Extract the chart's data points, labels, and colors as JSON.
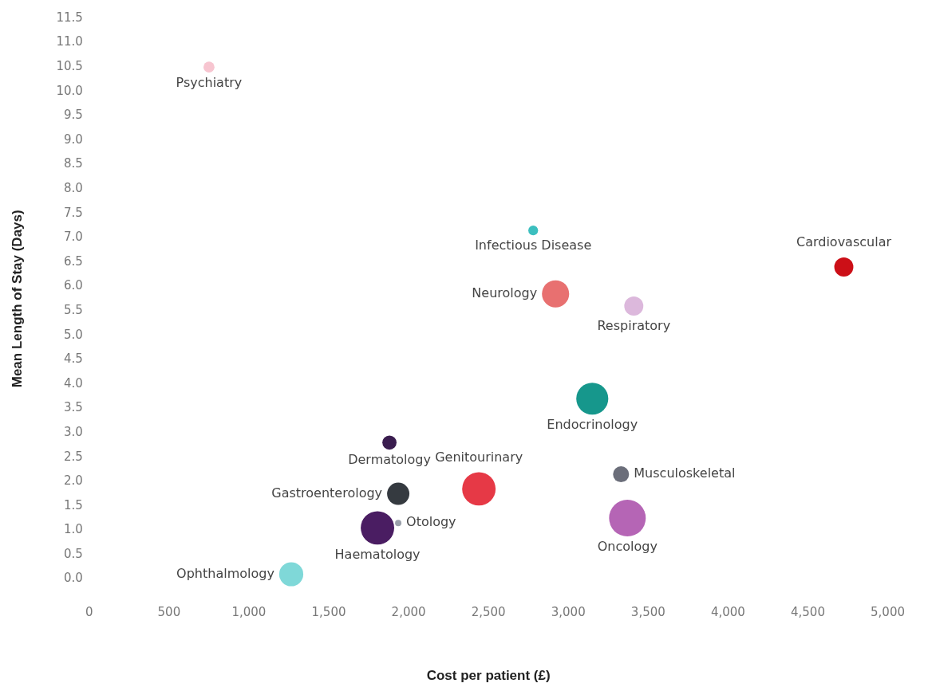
{
  "chart_data": {
    "type": "bubble",
    "xlabel": "Cost per patient (£)",
    "ylabel": "Mean Length of Stay (Days)",
    "legend": false,
    "grid": false,
    "xlim": [
      0,
      5000
    ],
    "xticks": [
      0,
      {
        "value": 500,
        "label": "500"
      },
      {
        "value": 1000,
        "label": "1,000"
      },
      {
        "value": 1500,
        "label": "1,500"
      },
      {
        "value": 2000,
        "label": "2,000"
      },
      {
        "value": 2500,
        "label": "2,500"
      },
      {
        "value": 3000,
        "label": "3,000"
      },
      {
        "value": 3500,
        "label": "3,500"
      },
      {
        "value": 4000,
        "label": "4,000"
      },
      {
        "value": 4500,
        "label": "4,500"
      },
      {
        "value": 5000,
        "label": "5,000"
      }
    ],
    "ylim": [
      0,
      11.5
    ],
    "yticks": [
      {
        "value": 0,
        "label": "0.0"
      },
      {
        "value": 0.5,
        "label": "0.5"
      },
      {
        "value": 1,
        "label": "1.0"
      },
      {
        "value": 1.5,
        "label": "1.5"
      },
      {
        "value": 2,
        "label": "2.0"
      },
      {
        "value": 2.5,
        "label": "2.5"
      },
      {
        "value": 3,
        "label": "3.0"
      },
      {
        "value": 3.5,
        "label": "3.5"
      },
      {
        "value": 4,
        "label": "4.0"
      },
      {
        "value": 4.5,
        "label": "4.5"
      },
      {
        "value": 5,
        "label": "5.0"
      },
      {
        "value": 5.5,
        "label": "5.5"
      },
      {
        "value": 6,
        "label": "6.0"
      },
      {
        "value": 6.5,
        "label": "6.5"
      },
      {
        "value": 7,
        "label": "7.0"
      },
      {
        "value": 7.5,
        "label": "7.5"
      },
      {
        "value": 8,
        "label": "8.0"
      },
      {
        "value": 8.5,
        "label": "8.5"
      },
      {
        "value": 9,
        "label": "9.0"
      },
      {
        "value": 9.5,
        "label": "9.5"
      },
      {
        "value": 10,
        "label": "10.0"
      },
      {
        "value": 10.5,
        "label": "10.5"
      },
      {
        "value": 11,
        "label": "11.0"
      },
      {
        "value": 11.5,
        "label": "11.5"
      }
    ],
    "series": [
      {
        "name": "Psychiatry",
        "color": "#f7c5d0",
        "x": [
          750
        ],
        "values": [
          10.5
        ],
        "sizes": [
          0.09
        ]
      },
      {
        "name": "Infectious Disease",
        "color": "#3cbfbf",
        "x": [
          2780
        ],
        "values": [
          7.15
        ],
        "sizes": [
          0.07
        ]
      },
      {
        "name": "Cardiovascular",
        "color": "#cc0f17",
        "x": [
          4725
        ],
        "values": [
          6.4
        ],
        "sizes": [
          0.27
        ]
      },
      {
        "name": "Neurology",
        "color": "#e87070",
        "x": [
          2920
        ],
        "values": [
          5.85
        ],
        "sizes": [
          0.55
        ]
      },
      {
        "name": "Respiratory",
        "color": "#dcb8dc",
        "x": [
          3410
        ],
        "values": [
          5.6
        ],
        "sizes": [
          0.27
        ]
      },
      {
        "name": "Endocrinology",
        "color": "#16978c",
        "x": [
          3150
        ],
        "values": [
          3.7
        ],
        "sizes": [
          0.76
        ]
      },
      {
        "name": "Dermatology",
        "color": "#3a1d4f",
        "x": [
          1880
        ],
        "values": [
          2.8
        ],
        "sizes": [
          0.15
        ]
      },
      {
        "name": "Musculoskeletal",
        "color": "#6b6e7a",
        "x": [
          3330
        ],
        "values": [
          2.15
        ],
        "sizes": [
          0.19
        ]
      },
      {
        "name": "Genitourinary",
        "color": "#e63946",
        "x": [
          2440
        ],
        "values": [
          1.85
        ],
        "sizes": [
          0.83
        ]
      },
      {
        "name": "Gastroenterology",
        "color": "#353a40",
        "x": [
          1935
        ],
        "values": [
          1.75
        ],
        "sizes": [
          0.37
        ]
      },
      {
        "name": "Otology",
        "color": "#9aa0aa",
        "x": [
          1935
        ],
        "values": [
          1.15
        ],
        "sizes": [
          0.03
        ]
      },
      {
        "name": "Haematology",
        "color": "#4a1d62",
        "x": [
          1805
        ],
        "values": [
          1.05
        ],
        "sizes": [
          0.83
        ]
      },
      {
        "name": "Oncology",
        "color": "#b565b5",
        "x": [
          3370
        ],
        "values": [
          1.25
        ],
        "sizes": [
          1
        ]
      },
      {
        "name": "Ophthalmology",
        "color": "#7fd8d8",
        "x": [
          1265
        ],
        "values": [
          0.1
        ],
        "sizes": [
          0.43
        ]
      }
    ]
  }
}
